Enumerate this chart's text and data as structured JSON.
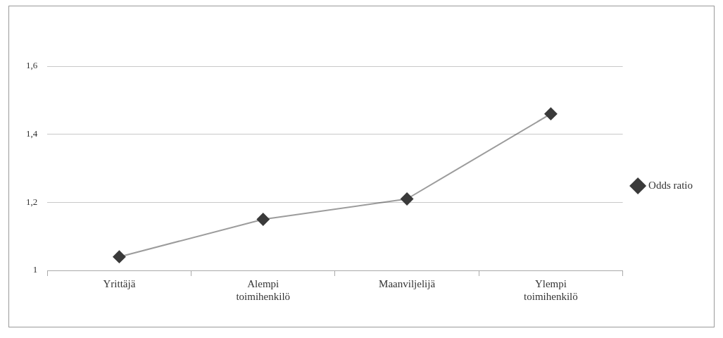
{
  "chart_data": {
    "type": "line",
    "categories": [
      [
        "Yrittäjä"
      ],
      [
        "Alempi",
        "toimihenkilö"
      ],
      [
        "Maanviljelijä"
      ],
      [
        "Ylempi",
        "toimihenkilö"
      ]
    ],
    "series": [
      {
        "name": "Odds ratio",
        "color": "#3a3a3a",
        "values": [
          1.04,
          1.15,
          1.21,
          1.46
        ]
      }
    ],
    "ylim": [
      1,
      1.6
    ],
    "yticks": [
      {
        "value": 1,
        "label": "1"
      },
      {
        "value": 1.2,
        "label": "1,2"
      },
      {
        "value": 1.4,
        "label": "1,4"
      },
      {
        "value": 1.6,
        "label": "1,6"
      }
    ],
    "grid": "y",
    "legend": "right",
    "marker": "diamond",
    "line_style": "solid"
  }
}
